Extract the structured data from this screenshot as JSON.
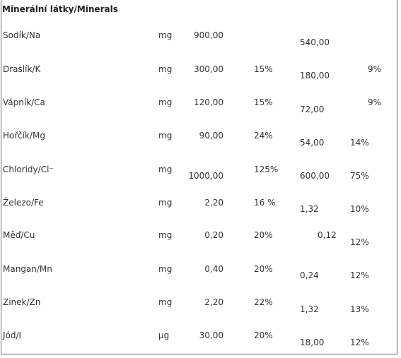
{
  "table": {
    "header": "Minerální látky/Minerals",
    "rows": [
      {
        "name": "Sodík/Na",
        "unit": "mg",
        "val1": "900,00",
        "pct1": "",
        "val2": "540,00",
        "pct2": ""
      },
      {
        "name": "Draslík/K",
        "unit": "mg",
        "val1": "300,00",
        "pct1": "15%",
        "val2": "180,00",
        "pct2": "9%"
      },
      {
        "name": "Vápník/Ca",
        "unit": "mg",
        "val1": "120,00",
        "pct1": "15%",
        "val2": "72,00",
        "pct2": "9%"
      },
      {
        "name": "Hořčík/Mg",
        "unit": "mg",
        "val1": "90,00",
        "pct1": "24%",
        "val2": "54,00",
        "pct2": "14%"
      },
      {
        "name": "Chloridy/Cl⁻",
        "unit": "mg",
        "val1": "1000,00",
        "pct1": "125%",
        "val2": "600,00",
        "pct2": "75%"
      },
      {
        "name": "Železo/Fe",
        "unit": "mg",
        "val1": "2,20",
        "pct1": "16 %",
        "val2": "1,32",
        "pct2": "10%"
      },
      {
        "name": "Měď/Cu",
        "unit": "mg",
        "val1": "0,20",
        "pct1": "20%",
        "val2": "0,12",
        "pct2": "12%"
      },
      {
        "name": "Mangan/Mn",
        "unit": "mg",
        "val1": "0,40",
        "pct1": "20%",
        "val2": "0,24",
        "pct2": "12%"
      },
      {
        "name": "Zinek/Zn",
        "unit": "mg",
        "val1": "2,20",
        "pct1": "22%",
        "val2": "1,32",
        "pct2": "13%"
      },
      {
        "name": "Jód/I",
        "unit": "μg",
        "val1": "30,00",
        "pct1": "20%",
        "val2": "18,00",
        "pct2": "12%"
      }
    ]
  }
}
